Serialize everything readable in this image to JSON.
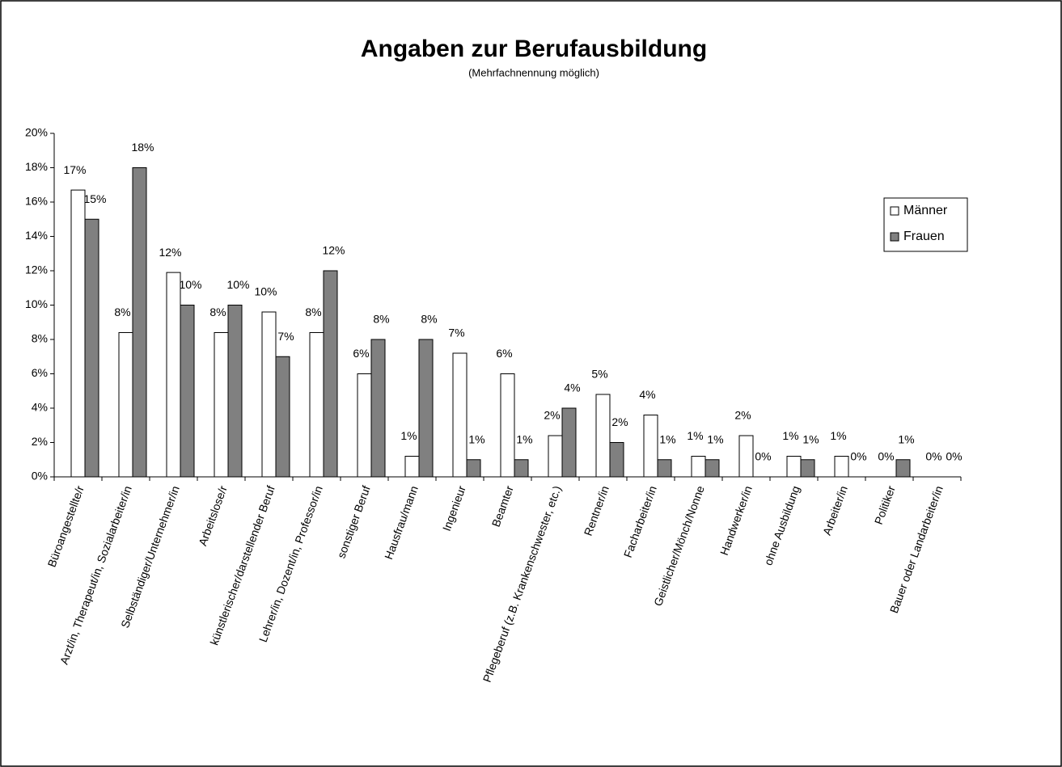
{
  "chart_data": {
    "type": "bar",
    "title": "Angaben zur Berufausbildung",
    "subtitle": "(Mehrfachnennung möglich)",
    "categories": [
      "Büroangestellte/r",
      "Arzt/in, Therapeut/in, Sozialarbeiter/in",
      "Selbständiger/Unternehmer/in",
      "Arbeitslose/r",
      "künstlerischer/darstellender Beruf",
      "Lehrer/in, Dozent/in, Professor/in",
      "sonstiger Beruf",
      "Hausfrau/mann",
      "Ingenieur",
      "Beamter",
      "Pflegeberuf (z.B. Krankenschwester, etc.)",
      "Rentner/in",
      "Facharbeiter/in",
      "Geistlicher/Mönch/Nonne",
      "Handwerker/in",
      "ohne Ausbildung",
      "Arbeiter/in",
      "Politiker",
      "Bauer oder Landarbeiter/in"
    ],
    "series": [
      {
        "name": "Männer",
        "color": "#ffffff",
        "values": [
          16.7,
          8.4,
          11.9,
          8.4,
          9.6,
          8.4,
          6.0,
          1.2,
          7.2,
          6.0,
          2.4,
          4.8,
          3.6,
          1.2,
          2.4,
          1.2,
          1.2,
          0,
          0
        ],
        "value_labels": [
          "17%",
          "8%",
          "12%",
          "8%",
          "10%",
          "8%",
          "6%",
          "1%",
          "7%",
          "6%",
          "2%",
          "5%",
          "4%",
          "1%",
          "2%",
          "1%",
          "1%",
          "0%",
          "0%"
        ]
      },
      {
        "name": "Frauen",
        "color": "#808080",
        "values": [
          15,
          18,
          10,
          10,
          7,
          12,
          8,
          8,
          1,
          1,
          4,
          2,
          1,
          1,
          0,
          1,
          0,
          1,
          0
        ],
        "value_labels": [
          "15%",
          "18%",
          "10%",
          "10%",
          "7%",
          "12%",
          "8%",
          "8%",
          "1%",
          "1%",
          "4%",
          "2%",
          "1%",
          "1%",
          "0%",
          "1%",
          "0%",
          "1%",
          "0%"
        ]
      }
    ],
    "ylim": [
      0,
      20
    ],
    "yticks": [
      {
        "value": 0,
        "label": "0%"
      },
      {
        "value": 2,
        "label": "2%"
      },
      {
        "value": 4,
        "label": "4%"
      },
      {
        "value": 6,
        "label": "6%"
      },
      {
        "value": 8,
        "label": "8%"
      },
      {
        "value": 10,
        "label": "10%"
      },
      {
        "value": 12,
        "label": "12%"
      },
      {
        "value": 14,
        "label": "14%"
      },
      {
        "value": 16,
        "label": "16%"
      },
      {
        "value": 18,
        "label": "18%"
      },
      {
        "value": 20,
        "label": "20%"
      }
    ],
    "grid": false,
    "legend": "right"
  }
}
